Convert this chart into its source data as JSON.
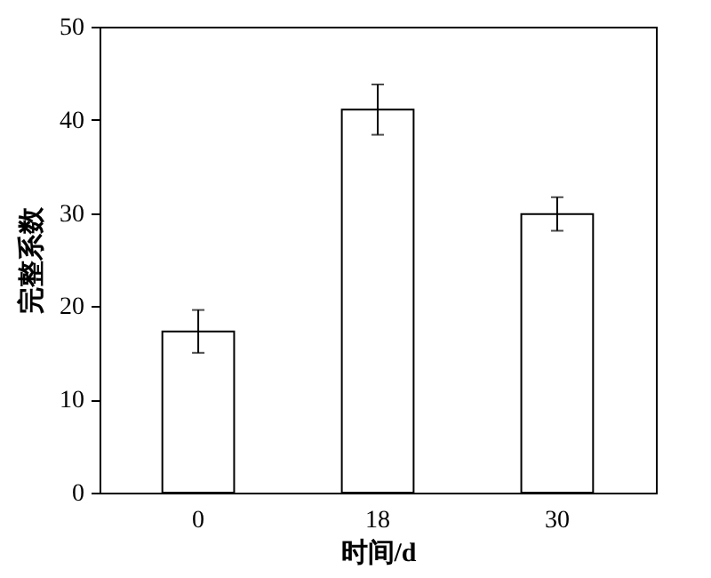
{
  "chart_data": {
    "type": "bar",
    "xlabel": "时间/d",
    "ylabel": "完整系数",
    "categories": [
      "0",
      "18",
      "30"
    ],
    "values": [
      17.3,
      41.1,
      29.9
    ],
    "errors": [
      2.3,
      2.7,
      1.8
    ],
    "color": "#ffffff",
    "ylim": [
      0,
      50
    ],
    "yticks": [
      0,
      10,
      20,
      30,
      40,
      50
    ],
    "grid": false
  }
}
